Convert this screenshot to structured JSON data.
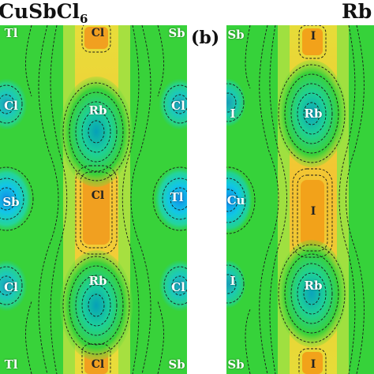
{
  "panel_a": {
    "title_main": "CuSbCl",
    "title_sub": "6",
    "atoms": [
      "Tl",
      "Cl",
      "Sb",
      "Cl",
      "Rb",
      "Cl",
      "Sb",
      "Cl",
      "Tl",
      "Cl",
      "Rb",
      "Cl",
      "Tl",
      "Cl",
      "Sb"
    ],
    "colors": {
      "background": "#2fd13f",
      "high": "#f0a020",
      "low": "#14c8e0"
    }
  },
  "panel_b": {
    "label": "(b)",
    "title": "Rb",
    "atoms": [
      "Sb",
      "I",
      "I",
      "Rb",
      "Cu",
      "I",
      "I",
      "Rb",
      "Sb",
      "I"
    ],
    "colors": {
      "background": "#34d23a",
      "high": "#f2a21a",
      "low": "#10c5e5"
    }
  }
}
